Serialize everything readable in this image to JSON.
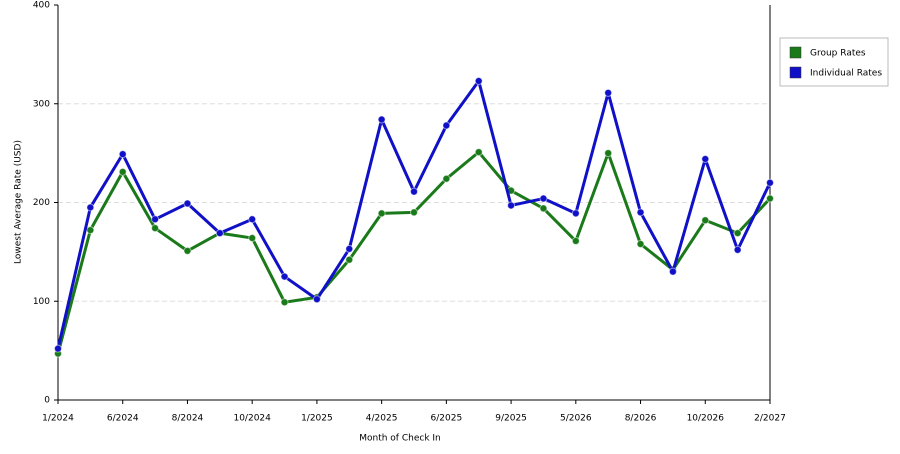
{
  "chart_data": {
    "type": "line",
    "x_label": "Month of Check In",
    "y_label": "Lowest Average Rate (USD)",
    "categories": [
      "1/2024",
      null,
      "6/2024",
      null,
      "8/2024",
      null,
      "10/2024",
      null,
      "1/2025",
      null,
      "4/2025",
      null,
      "6/2025",
      null,
      "9/2025",
      null,
      "5/2026",
      null,
      "8/2026",
      null,
      "10/2026",
      null,
      "2/2027"
    ],
    "series": [
      {
        "name": "Group Rates",
        "color": "#1a7a1a",
        "values": [
          47,
          172,
          231,
          174,
          151,
          169,
          164,
          99,
          104,
          142,
          189,
          190,
          224,
          251,
          212,
          194,
          161,
          250,
          158,
          132,
          182,
          169,
          204
        ]
      },
      {
        "name": "Individual Rates",
        "color": "#1010c8",
        "values": [
          52,
          195,
          249,
          183,
          199,
          169,
          183,
          125,
          102,
          153,
          284,
          211,
          278,
          323,
          197,
          204,
          189,
          311,
          190,
          130,
          244,
          152,
          220
        ]
      }
    ],
    "ylim": [
      0,
      400
    ],
    "yticks": [
      0,
      100,
      200,
      300,
      400
    ],
    "grid": true,
    "legend": "right"
  }
}
